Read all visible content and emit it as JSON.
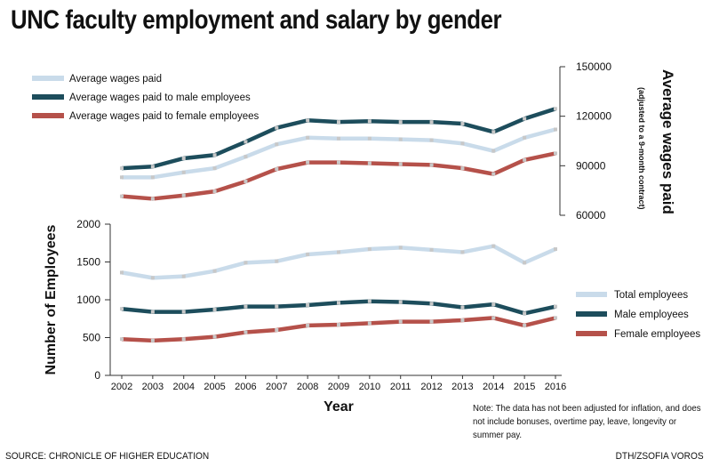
{
  "title": "UNC faculty employment and salary by gender",
  "source": "SOURCE: CHRONICLE OF HIGHER EDUCATION",
  "credit": "DTH/ZSOFIA VOROS",
  "note": "Note: The data has not been adjusted for inflation, and does not include bonuses, overtime pay, leave, longevity or summer pay.",
  "colors": {
    "total": "#c9dbea",
    "male": "#1d4d5c",
    "female": "#b5514a",
    "marker": "#c8c8c8"
  },
  "chart_data": [
    {
      "type": "line",
      "title": "",
      "ylabel": "Average wages paid",
      "ylabel_sub": "(adjusted to a 9-month contract)",
      "ylim": [
        60000,
        150000
      ],
      "yticks": [
        60000,
        90000,
        120000,
        150000
      ],
      "x": [
        2002,
        2003,
        2004,
        2005,
        2006,
        2007,
        2008,
        2009,
        2010,
        2011,
        2012,
        2013,
        2014,
        2015,
        2016
      ],
      "legend_position": "top-left",
      "series": [
        {
          "name": "Average wages paid",
          "color": "#c9dbea",
          "values": [
            83000,
            83000,
            86000,
            88500,
            95500,
            103000,
            107000,
            106500,
            106500,
            106000,
            105500,
            103500,
            99000,
            107000,
            112000
          ]
        },
        {
          "name": "Average wages paid to male employees",
          "color": "#1d4d5c",
          "values": [
            88500,
            89500,
            94500,
            96500,
            104500,
            113000,
            117500,
            116500,
            117000,
            116500,
            116500,
            115500,
            110500,
            118500,
            124500
          ]
        },
        {
          "name": "Average wages paid to female employees",
          "color": "#b5514a",
          "values": [
            71500,
            70000,
            72000,
            74500,
            80500,
            88000,
            92000,
            92000,
            91500,
            91000,
            90500,
            88500,
            85000,
            93500,
            97500
          ]
        }
      ]
    },
    {
      "type": "line",
      "title": "",
      "xlabel": "Year",
      "ylabel": "Number of Employees",
      "ylim": [
        0,
        2000
      ],
      "yticks": [
        0,
        500,
        1000,
        1500,
        2000
      ],
      "x": [
        2002,
        2003,
        2004,
        2005,
        2006,
        2007,
        2008,
        2009,
        2010,
        2011,
        2012,
        2013,
        2014,
        2015,
        2016
      ],
      "legend_position": "right",
      "series": [
        {
          "name": "Total employees",
          "color": "#c9dbea",
          "values": [
            1360,
            1290,
            1310,
            1380,
            1490,
            1510,
            1600,
            1630,
            1670,
            1690,
            1660,
            1630,
            1710,
            1490,
            1670
          ]
        },
        {
          "name": "Male employees",
          "color": "#1d4d5c",
          "values": [
            880,
            840,
            840,
            870,
            910,
            910,
            930,
            960,
            980,
            970,
            950,
            900,
            940,
            820,
            910
          ]
        },
        {
          "name": "Female employees",
          "color": "#b5514a",
          "values": [
            480,
            460,
            480,
            510,
            570,
            600,
            660,
            670,
            690,
            710,
            710,
            730,
            760,
            660,
            760
          ]
        }
      ]
    }
  ]
}
